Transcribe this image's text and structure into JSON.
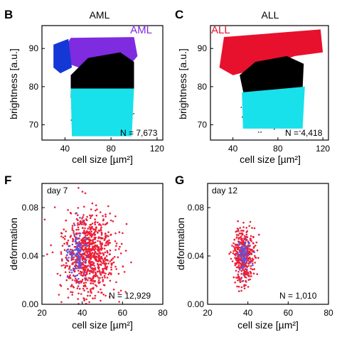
{
  "colors": {
    "aml": "#7f2be0",
    "all": "#e8112d",
    "blue": "#1438d6",
    "cyan": "#18e1eb",
    "black": "#000000",
    "red": "#ec1f38",
    "inner_blue": "#5b56e0"
  },
  "chart_data": [
    {
      "panel": "B",
      "type": "scatter",
      "title": "AML",
      "xlabel": "cell size [µm²]",
      "ylabel": "brightness [a.u.]",
      "xlim": [
        20,
        125
      ],
      "ylim": [
        66,
        96
      ],
      "xticks": [
        "40",
        "80",
        "120"
      ],
      "yticks": [
        "70",
        "80",
        "90"
      ],
      "legend": "AML",
      "annotation": "N = 7,673",
      "series": [
        {
          "name": "AML",
          "color": "#7f2be0",
          "region": [
            [
              34,
              87
            ],
            [
              45,
              92.8
            ],
            [
              100,
              93
            ],
            [
              103,
              88
            ],
            [
              96,
              85.5
            ],
            [
              52,
              85
            ]
          ]
        },
        {
          "color": "#1438d6",
          "region": [
            [
              30,
              91
            ],
            [
              43,
              92.5
            ],
            [
              46,
              85
            ],
            [
              36,
              83.5
            ],
            [
              30,
              85
            ]
          ]
        },
        {
          "color": "#000000",
          "region": [
            [
              45,
              83
            ],
            [
              60,
              87.5
            ],
            [
              88,
              89
            ],
            [
              100,
              86.5
            ],
            [
              100,
              79.5
            ],
            [
              60,
              77
            ],
            [
              45,
              77
            ]
          ]
        },
        {
          "color": "#18e1eb",
          "region": [
            [
              45,
              79.5
            ],
            [
              100,
              79.5
            ],
            [
              98,
              67
            ],
            [
              46,
              67
            ]
          ]
        }
      ]
    },
    {
      "panel": "C",
      "type": "scatter",
      "title": "ALL",
      "xlabel": "cell size [µm²]",
      "ylabel": "brightness [a.u.]",
      "xlim": [
        20,
        125
      ],
      "ylim": [
        66,
        96
      ],
      "xticks": [
        "40",
        "80",
        "120"
      ],
      "yticks": [
        "70",
        "80",
        "90"
      ],
      "legend": "ALL",
      "annotation": "N = 4,418",
      "series": [
        {
          "name": "ALL",
          "color": "#e8112d",
          "region": [
            [
              28,
              85
            ],
            [
              32,
              93
            ],
            [
              118,
              95
            ],
            [
              120,
              89
            ],
            [
              95,
              88
            ],
            [
              60,
              84.5
            ],
            [
              40,
              83
            ]
          ]
        },
        {
          "color": "#000000",
          "region": [
            [
              46,
              83
            ],
            [
              60,
              86.5
            ],
            [
              88,
              88
            ],
            [
              103,
              86
            ],
            [
              102,
              79.5
            ],
            [
              50,
              77.5
            ]
          ]
        },
        {
          "color": "#18e1eb",
          "region": [
            [
              48,
              78.5
            ],
            [
              104,
              80
            ],
            [
              102,
              69
            ],
            [
              49,
              69
            ]
          ]
        }
      ]
    },
    {
      "panel": "F",
      "type": "scatter",
      "title": "day 7",
      "xlabel": "cell size [µm²]",
      "ylabel": "deformation",
      "xlim": [
        20,
        80
      ],
      "ylim": [
        0,
        0.1
      ],
      "xticks": [
        "20",
        "40",
        "60",
        "80"
      ],
      "yticks": [
        "0.00",
        "0.04",
        "0.08"
      ],
      "annotation": "N = 12,929",
      "series": [
        {
          "color": "#ec1f38",
          "center": [
            43,
            0.041
          ],
          "spread": [
            6.5,
            0.017
          ],
          "points": 900
        },
        {
          "color": "#5b56e0",
          "center": [
            38,
            0.042
          ],
          "spread": [
            2.2,
            0.01
          ],
          "points": 110
        }
      ]
    },
    {
      "panel": "G",
      "type": "scatter",
      "title": "day 12",
      "xlabel": "cell size [µm²]",
      "ylabel": "deformation",
      "xlim": [
        20,
        80
      ],
      "ylim": [
        0,
        0.1
      ],
      "xticks": [
        "20",
        "40",
        "60",
        "80"
      ],
      "yticks": [
        "0.00",
        "0.04",
        "0.08"
      ],
      "annotation": "N = 1,010",
      "series": [
        {
          "color": "#ec1f38",
          "center": [
            38,
            0.04
          ],
          "spread": [
            2.4,
            0.011
          ],
          "points": 420
        },
        {
          "color": "#5b56e0",
          "center": [
            38,
            0.041
          ],
          "spread": [
            1.6,
            0.008
          ],
          "points": 70
        }
      ]
    }
  ]
}
